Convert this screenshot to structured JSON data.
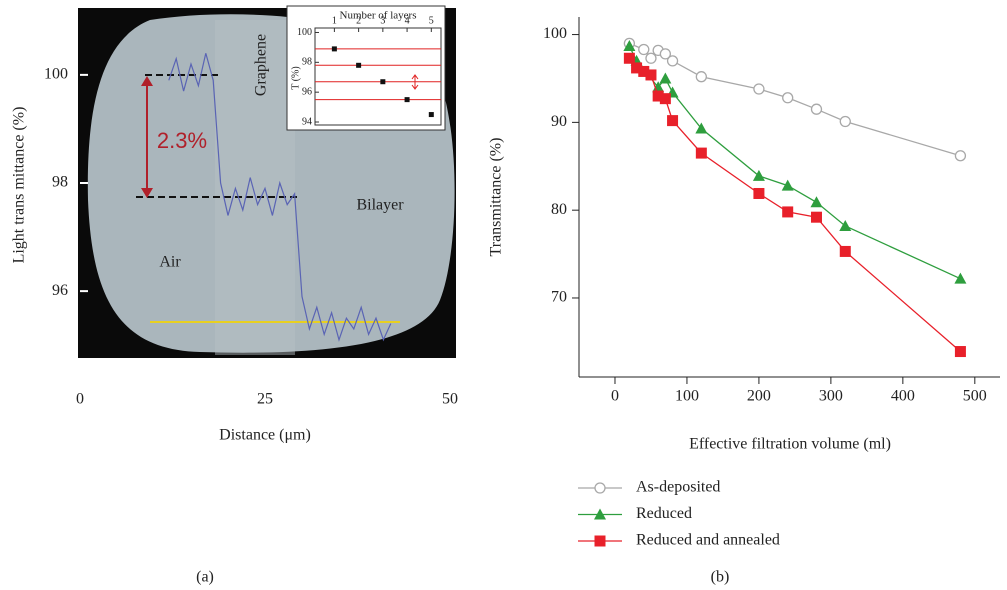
{
  "chart_data": [
    {
      "type": "line",
      "panel_label": "(a)",
      "xlabel": "Distance (μm)",
      "ylabel": "Light trans mittance (%)",
      "annotations": [
        "2.3%",
        "Graphene",
        "Bilayer",
        "Air"
      ],
      "xlim": [
        0,
        50
      ],
      "xticks": [
        0,
        25,
        50
      ],
      "ylim": [
        94.8,
        101.2
      ],
      "yticks": [
        96,
        98,
        100
      ],
      "series": [
        {
          "color": "#5a64b4",
          "x": [
            12,
            13,
            14,
            15,
            16,
            17,
            18,
            19,
            20,
            21,
            22,
            23,
            24,
            25,
            26,
            27,
            28,
            29,
            30,
            31,
            32,
            33,
            34,
            35,
            36,
            37,
            38,
            39,
            40,
            41,
            42
          ],
          "values": [
            99.9,
            100.3,
            99.7,
            100.2,
            99.8,
            100.4,
            99.9,
            98.0,
            97.4,
            97.9,
            97.5,
            98.1,
            97.6,
            97.9,
            97.4,
            98.0,
            97.6,
            97.8,
            95.9,
            95.3,
            95.7,
            95.2,
            95.6,
            95.1,
            95.5,
            95.3,
            95.7,
            95.2,
            95.5,
            95.1,
            95.4
          ]
        }
      ]
    },
    {
      "type": "scatter",
      "title": "Number of layers",
      "ylabel": "T (%)",
      "xlim": [
        0.2,
        5.4
      ],
      "xticks": [
        1,
        2,
        3,
        4,
        5
      ],
      "ylim": [
        93.8,
        100.3
      ],
      "yticks": [
        94,
        96,
        98,
        100
      ],
      "x": [
        1,
        2,
        3,
        4,
        5
      ],
      "values": [
        98.9,
        97.8,
        96.7,
        95.5,
        94.5
      ],
      "color": "#111111",
      "line_color": "#e02020"
    },
    {
      "type": "line",
      "panel_label": "(b)",
      "xlabel": "Effective filtration volume (ml)",
      "ylabel": "Transmittance (%)",
      "xlim": [
        -50,
        535
      ],
      "xticks": [
        0,
        100,
        200,
        300,
        400,
        500
      ],
      "ylim": [
        61,
        102
      ],
      "yticks": [
        70,
        80,
        90,
        100
      ],
      "series": [
        {
          "name": "As-deposited",
          "color": "#a8a8a8",
          "marker": "circle",
          "x": [
            20,
            40,
            50,
            60,
            70,
            80,
            120,
            200,
            240,
            280,
            320,
            480
          ],
          "values": [
            99.0,
            98.3,
            97.3,
            98.2,
            97.8,
            97.0,
            95.2,
            93.8,
            92.8,
            91.5,
            90.1,
            86.2
          ]
        },
        {
          "name": "Reduced",
          "color": "#2e9e3e",
          "marker": "triangle",
          "x": [
            20,
            30,
            60,
            70,
            80,
            120,
            200,
            240,
            280,
            320,
            480
          ],
          "values": [
            98.7,
            97.0,
            94.0,
            95.0,
            93.4,
            89.3,
            83.9,
            82.8,
            80.9,
            78.2,
            72.2
          ]
        },
        {
          "name": "Reduced and annealed",
          "color": "#e8202a",
          "marker": "square",
          "x": [
            20,
            30,
            40,
            50,
            60,
            70,
            80,
            120,
            200,
            240,
            280,
            320,
            480
          ],
          "values": [
            97.3,
            96.2,
            95.8,
            95.4,
            93.0,
            92.7,
            90.2,
            86.5,
            81.9,
            79.8,
            79.2,
            75.3,
            63.9
          ]
        }
      ]
    }
  ]
}
